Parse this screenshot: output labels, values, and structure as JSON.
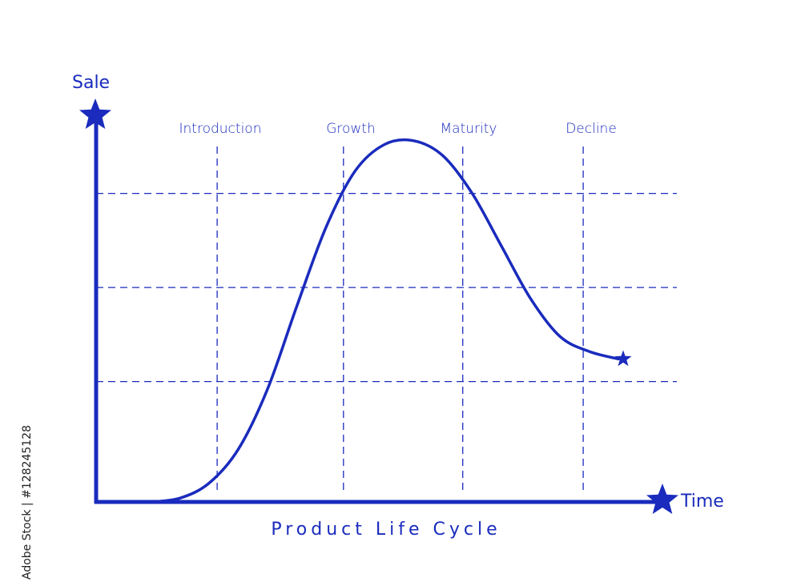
{
  "chart_data": {
    "type": "line",
    "title": "Product Life Cycle",
    "xlabel": "Time",
    "ylabel": "Sale",
    "stages": [
      "Introduction",
      "Growth",
      "Maturity",
      "Decline"
    ],
    "xlim": [
      0,
      1
    ],
    "ylim": [
      0,
      1
    ],
    "grid": true,
    "series": [
      {
        "x": [
          0.0,
          0.05,
          0.1,
          0.15,
          0.2,
          0.25,
          0.3,
          0.35,
          0.4,
          0.45,
          0.5,
          0.55,
          0.6,
          0.65,
          0.7,
          0.75,
          0.8
        ],
        "y": [
          0.0,
          0.01,
          0.05,
          0.14,
          0.3,
          0.52,
          0.73,
          0.88,
          0.95,
          0.96,
          0.92,
          0.82,
          0.68,
          0.54,
          0.44,
          0.4,
          0.38
        ]
      }
    ],
    "colors": {
      "line": "#1a2bbd",
      "grid": "#1a2bbd",
      "text": "#1a2bbd"
    }
  },
  "watermark": "Adobe Stock | #128245128"
}
